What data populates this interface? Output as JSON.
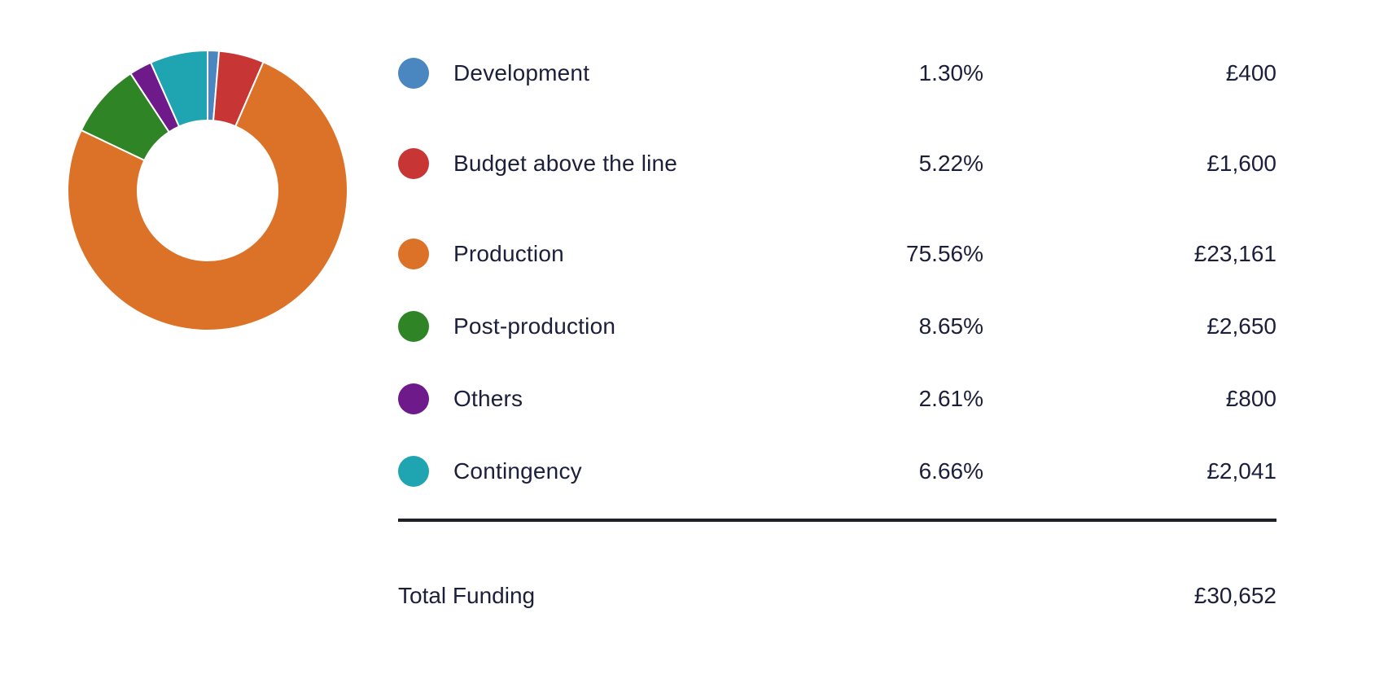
{
  "chart_data": {
    "type": "pie",
    "variant": "donut",
    "title": "",
    "series": [
      {
        "name": "Development",
        "percent": "1.30%",
        "value": 400,
        "amount": "£400",
        "color": "#4a86c0"
      },
      {
        "name": "Budget above the line",
        "percent": "5.22%",
        "value": 1600,
        "amount": "£1,600",
        "color": "#c73634"
      },
      {
        "name": "Production",
        "percent": "75.56%",
        "value": 23161,
        "amount": "£23,161",
        "color": "#dc7228"
      },
      {
        "name": "Post-production",
        "percent": "8.65%",
        "value": 2650,
        "amount": "£2,650",
        "color": "#2f8425"
      },
      {
        "name": "Others",
        "percent": "2.61%",
        "value": 800,
        "amount": "£800",
        "color": "#6f1a8a"
      },
      {
        "name": "Contingency",
        "percent": "6.66%",
        "value": 2041,
        "amount": "£2,041",
        "color": "#1fa5b1"
      }
    ]
  },
  "total": {
    "label": "Total Funding",
    "amount": "£30,652"
  }
}
